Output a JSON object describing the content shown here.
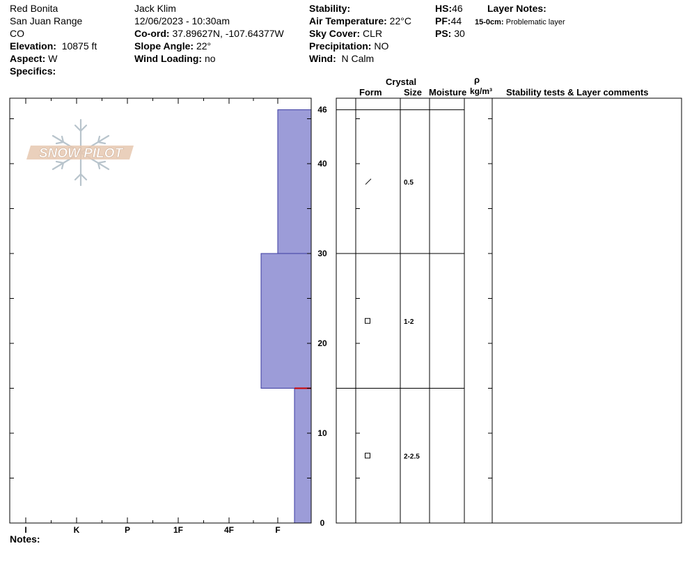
{
  "header": {
    "location": "Red Bonita",
    "range": "San Juan Range",
    "state": "CO",
    "elevation_label": "Elevation:",
    "elevation_value": "10875 ft",
    "aspect_label": "Aspect:",
    "aspect_value": "W",
    "specifics_label": "Specifics:",
    "observer": "Jack Klim",
    "datetime": "12/06/2023 - 10:30am",
    "coord_label": "Co-ord:",
    "coord_value": "37.89627N, -107.64377W",
    "slope_label": "Slope Angle:",
    "slope_value": "22°",
    "wind_loading_label": "Wind Loading:",
    "wind_loading_value": "no",
    "stability_label": "Stability:",
    "stability_value": "",
    "air_temp_label": "Air Temperature:",
    "air_temp_value": "22°C",
    "sky_label": "Sky Cover:",
    "sky_value": "CLR",
    "precip_label": "Precipitation:",
    "precip_value": "NO",
    "wind_label": "Wind:",
    "wind_value": "N Calm",
    "hs_label": "HS:",
    "hs_value": "46",
    "pf_label": "PF:",
    "pf_value": "44",
    "ps_label": "PS:",
    "ps_value": "30",
    "layer_notes_label": "Layer Notes:",
    "layer_note_range": "15-0cm:",
    "layer_note_text": "Problematic layer"
  },
  "logo_text": "SNOW PILOT",
  "columns": {
    "crystal": "Crystal",
    "form": "Form",
    "size": "Size",
    "moisture": "Moisture",
    "rho": "ρ",
    "density_unit": "kg/m³",
    "stability": "Stability tests & Layer comments"
  },
  "notes_label": "Notes:",
  "colors": {
    "layer_fill": "#9c9cd8",
    "layer_stroke": "#3a3aa0",
    "red_marker": "#cc0000"
  },
  "chart_data": {
    "type": "bar",
    "title": "",
    "xlabel": "",
    "ylabel": "",
    "hardness_ticks": [
      "I",
      "K",
      "P",
      "1F",
      "4F",
      "F"
    ],
    "height_ticks": [
      0,
      10,
      20,
      30,
      40,
      46
    ],
    "ylim": [
      0,
      46
    ],
    "layers": [
      {
        "top": 46,
        "bottom": 30,
        "hardness": "F",
        "form_icon": "precip-particle-icon",
        "size": "0.5"
      },
      {
        "top": 30,
        "bottom": 15,
        "hardness": "F+",
        "form_icon": "faceted-icon",
        "size": "1-2"
      },
      {
        "top": 15,
        "bottom": 0,
        "hardness": "F-",
        "form_icon": "faceted-icon",
        "size": "2-2.5"
      }
    ],
    "marked_boundary": 15
  }
}
